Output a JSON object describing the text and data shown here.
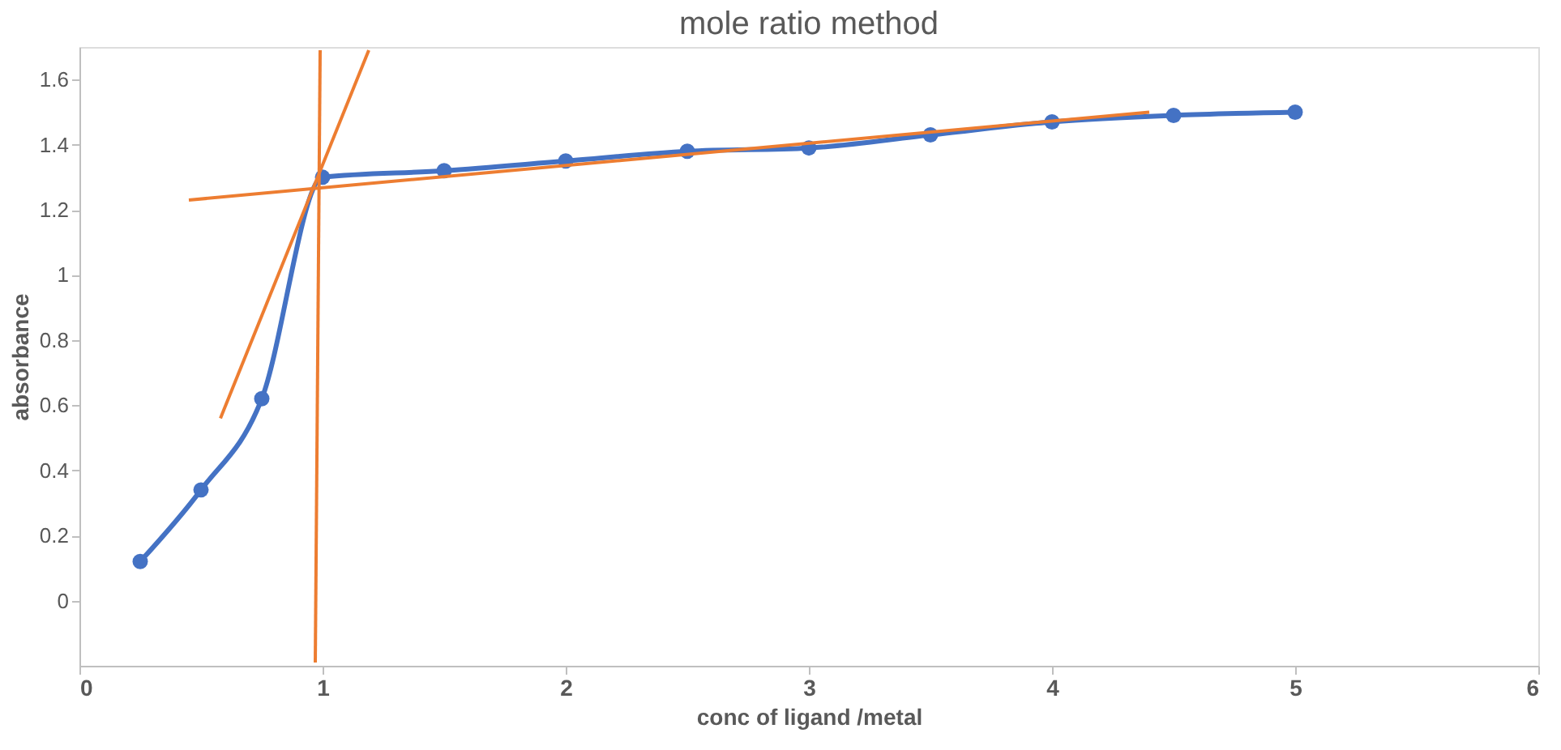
{
  "chart_data": {
    "type": "line",
    "title": "mole ratio method",
    "xlabel": "conc of ligand /metal",
    "ylabel": "absorbance",
    "xlim": [
      0,
      6
    ],
    "xticks": [
      0,
      1,
      2,
      3,
      4,
      5,
      6
    ],
    "ylim": [
      -0.2,
      1.7
    ],
    "yticks": [
      0,
      0.2,
      0.4,
      0.6,
      0.8,
      1,
      1.2,
      1.4,
      1.6
    ],
    "grid": false,
    "series": [
      {
        "color": "#4472c4",
        "marker": "circle",
        "x": [
          0.25,
          0.5,
          0.75,
          1,
          1.5,
          2,
          2.5,
          3,
          3.5,
          4,
          4.5,
          5
        ],
        "values": [
          0.12,
          0.34,
          0.62,
          1.3,
          1.32,
          1.35,
          1.38,
          1.39,
          1.43,
          1.47,
          1.49,
          1.5
        ]
      },
      {
        "color": "#ed7d31",
        "marker": "none",
        "x": [
          0.45,
          4.4
        ],
        "values": [
          1.23,
          1.5
        ]
      },
      {
        "color": "#ed7d31",
        "marker": "none",
        "x": [
          0.58,
          1.19
        ],
        "values": [
          0.56,
          1.69
        ]
      },
      {
        "color": "#ed7d31",
        "marker": "none",
        "x": [
          0.97,
          0.99
        ],
        "values": [
          -0.19,
          1.69
        ]
      }
    ]
  }
}
